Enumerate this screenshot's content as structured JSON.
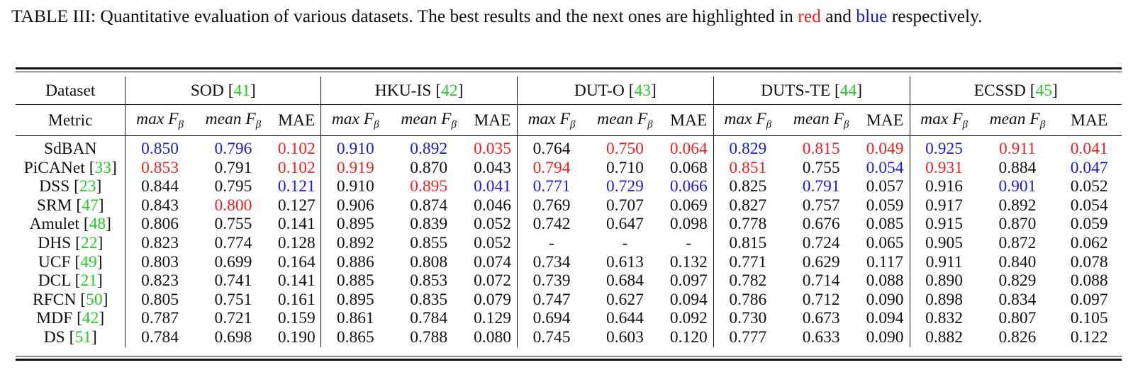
{
  "caption": {
    "pre": "TABLE III: Quantitative evaluation of various datasets. The best results and the next ones are highlighted in ",
    "best_color_word": "red",
    "and_word": " and ",
    "next_color_word": "blue",
    "post": " respectively."
  },
  "colors": {
    "best": "#f02020",
    "second": "#1a1ad8",
    "citation": "#22cc22"
  },
  "header": {
    "dataset_label": "Dataset",
    "metric_label": "Metric",
    "datasets": [
      {
        "name": "SOD ",
        "ref": "41"
      },
      {
        "name": "HKU-IS ",
        "ref": "42"
      },
      {
        "name": "DUT-O ",
        "ref": "43"
      },
      {
        "name": "DUTS-TE ",
        "ref": "44"
      },
      {
        "name": "ECSSD ",
        "ref": "45"
      }
    ],
    "metrics": {
      "max_prefix": "max F",
      "mean_prefix": "mean F",
      "subscript": "β",
      "mae": "MAE"
    }
  },
  "rows": [
    {
      "method": "SdBAN",
      "ref": "",
      "values": [
        {
          "v": "0.850",
          "h": "second"
        },
        {
          "v": "0.796",
          "h": "second"
        },
        {
          "v": "0.102",
          "h": "best"
        },
        {
          "v": "0.910",
          "h": "second"
        },
        {
          "v": "0.892",
          "h": "second"
        },
        {
          "v": "0.035",
          "h": "best"
        },
        {
          "v": "0.764",
          "h": ""
        },
        {
          "v": "0.750",
          "h": "best"
        },
        {
          "v": "0.064",
          "h": "best"
        },
        {
          "v": "0.829",
          "h": "second"
        },
        {
          "v": "0.815",
          "h": "best"
        },
        {
          "v": "0.049",
          "h": "best"
        },
        {
          "v": "0.925",
          "h": "second"
        },
        {
          "v": "0.911",
          "h": "best"
        },
        {
          "v": "0.041",
          "h": "best"
        }
      ]
    },
    {
      "method": "PiCANet ",
      "ref": "33",
      "values": [
        {
          "v": "0.853",
          "h": "best"
        },
        {
          "v": "0.791",
          "h": ""
        },
        {
          "v": "0.102",
          "h": "best"
        },
        {
          "v": "0.919",
          "h": "best"
        },
        {
          "v": "0.870",
          "h": ""
        },
        {
          "v": "0.043",
          "h": ""
        },
        {
          "v": "0.794",
          "h": "best"
        },
        {
          "v": "0.710",
          "h": ""
        },
        {
          "v": "0.068",
          "h": ""
        },
        {
          "v": "0.851",
          "h": "best"
        },
        {
          "v": "0.755",
          "h": ""
        },
        {
          "v": "0.054",
          "h": "second"
        },
        {
          "v": "0.931",
          "h": "best"
        },
        {
          "v": "0.884",
          "h": ""
        },
        {
          "v": "0.047",
          "h": "second"
        }
      ]
    },
    {
      "method": "DSS ",
      "ref": "23",
      "values": [
        {
          "v": "0.844",
          "h": ""
        },
        {
          "v": "0.795",
          "h": ""
        },
        {
          "v": "0.121",
          "h": "second"
        },
        {
          "v": "0.910",
          "h": ""
        },
        {
          "v": "0.895",
          "h": "best"
        },
        {
          "v": "0.041",
          "h": "second"
        },
        {
          "v": "0.771",
          "h": "second"
        },
        {
          "v": "0.729",
          "h": "second"
        },
        {
          "v": "0.066",
          "h": "second"
        },
        {
          "v": "0.825",
          "h": ""
        },
        {
          "v": "0.791",
          "h": "second"
        },
        {
          "v": "0.057",
          "h": ""
        },
        {
          "v": "0.916",
          "h": ""
        },
        {
          "v": "0.901",
          "h": "second"
        },
        {
          "v": "0.052",
          "h": ""
        }
      ]
    },
    {
      "method": "SRM ",
      "ref": "47",
      "values": [
        {
          "v": "0.843",
          "h": ""
        },
        {
          "v": "0.800",
          "h": "best"
        },
        {
          "v": "0.127",
          "h": ""
        },
        {
          "v": "0.906",
          "h": ""
        },
        {
          "v": "0.874",
          "h": ""
        },
        {
          "v": "0.046",
          "h": ""
        },
        {
          "v": "0.769",
          "h": ""
        },
        {
          "v": "0.707",
          "h": ""
        },
        {
          "v": "0.069",
          "h": ""
        },
        {
          "v": "0.827",
          "h": ""
        },
        {
          "v": "0.757",
          "h": ""
        },
        {
          "v": "0.059",
          "h": ""
        },
        {
          "v": "0.917",
          "h": ""
        },
        {
          "v": "0.892",
          "h": ""
        },
        {
          "v": "0.054",
          "h": ""
        }
      ]
    },
    {
      "method": "Amulet ",
      "ref": "48",
      "values": [
        {
          "v": "0.806",
          "h": ""
        },
        {
          "v": "0.755",
          "h": ""
        },
        {
          "v": "0.141",
          "h": ""
        },
        {
          "v": "0.895",
          "h": ""
        },
        {
          "v": "0.839",
          "h": ""
        },
        {
          "v": "0.052",
          "h": ""
        },
        {
          "v": "0.742",
          "h": ""
        },
        {
          "v": "0.647",
          "h": ""
        },
        {
          "v": "0.098",
          "h": ""
        },
        {
          "v": "0.778",
          "h": ""
        },
        {
          "v": "0.676",
          "h": ""
        },
        {
          "v": "0.085",
          "h": ""
        },
        {
          "v": "0.915",
          "h": ""
        },
        {
          "v": "0.870",
          "h": ""
        },
        {
          "v": "0.059",
          "h": ""
        }
      ]
    },
    {
      "method": "DHS ",
      "ref": "22",
      "values": [
        {
          "v": "0.823",
          "h": ""
        },
        {
          "v": "0.774",
          "h": ""
        },
        {
          "v": "0.128",
          "h": ""
        },
        {
          "v": "0.892",
          "h": ""
        },
        {
          "v": "0.855",
          "h": ""
        },
        {
          "v": "0.052",
          "h": ""
        },
        {
          "v": "-",
          "h": ""
        },
        {
          "v": "-",
          "h": ""
        },
        {
          "v": "-",
          "h": ""
        },
        {
          "v": "0.815",
          "h": ""
        },
        {
          "v": "0.724",
          "h": ""
        },
        {
          "v": "0.065",
          "h": ""
        },
        {
          "v": "0.905",
          "h": ""
        },
        {
          "v": "0.872",
          "h": ""
        },
        {
          "v": "0.062",
          "h": ""
        }
      ]
    },
    {
      "method": "UCF ",
      "ref": "49",
      "values": [
        {
          "v": "0.803",
          "h": ""
        },
        {
          "v": "0.699",
          "h": ""
        },
        {
          "v": "0.164",
          "h": ""
        },
        {
          "v": "0.886",
          "h": ""
        },
        {
          "v": "0.808",
          "h": ""
        },
        {
          "v": "0.074",
          "h": ""
        },
        {
          "v": "0.734",
          "h": ""
        },
        {
          "v": "0.613",
          "h": ""
        },
        {
          "v": "0.132",
          "h": ""
        },
        {
          "v": "0.771",
          "h": ""
        },
        {
          "v": "0.629",
          "h": ""
        },
        {
          "v": "0.117",
          "h": ""
        },
        {
          "v": "0.911",
          "h": ""
        },
        {
          "v": "0.840",
          "h": ""
        },
        {
          "v": "0.078",
          "h": ""
        }
      ]
    },
    {
      "method": "DCL ",
      "ref": "21",
      "values": [
        {
          "v": "0.823",
          "h": ""
        },
        {
          "v": "0.741",
          "h": ""
        },
        {
          "v": "0.141",
          "h": ""
        },
        {
          "v": "0.885",
          "h": ""
        },
        {
          "v": "0.853",
          "h": ""
        },
        {
          "v": "0.072",
          "h": ""
        },
        {
          "v": "0.739",
          "h": ""
        },
        {
          "v": "0.684",
          "h": ""
        },
        {
          "v": "0.097",
          "h": ""
        },
        {
          "v": "0.782",
          "h": ""
        },
        {
          "v": "0.714",
          "h": ""
        },
        {
          "v": "0.088",
          "h": ""
        },
        {
          "v": "0.890",
          "h": ""
        },
        {
          "v": "0.829",
          "h": ""
        },
        {
          "v": "0.088",
          "h": ""
        }
      ]
    },
    {
      "method": "RFCN ",
      "ref": "50",
      "values": [
        {
          "v": "0.805",
          "h": ""
        },
        {
          "v": "0.751",
          "h": ""
        },
        {
          "v": "0.161",
          "h": ""
        },
        {
          "v": "0.895",
          "h": ""
        },
        {
          "v": "0.835",
          "h": ""
        },
        {
          "v": "0.079",
          "h": ""
        },
        {
          "v": "0.747",
          "h": ""
        },
        {
          "v": "0.627",
          "h": ""
        },
        {
          "v": "0.094",
          "h": ""
        },
        {
          "v": "0.786",
          "h": ""
        },
        {
          "v": "0.712",
          "h": ""
        },
        {
          "v": "0.090",
          "h": ""
        },
        {
          "v": "0.898",
          "h": ""
        },
        {
          "v": "0.834",
          "h": ""
        },
        {
          "v": "0.097",
          "h": ""
        }
      ]
    },
    {
      "method": "MDF ",
      "ref": "42",
      "values": [
        {
          "v": "0.787",
          "h": ""
        },
        {
          "v": "0.721",
          "h": ""
        },
        {
          "v": "0.159",
          "h": ""
        },
        {
          "v": "0.861",
          "h": ""
        },
        {
          "v": "0.784",
          "h": ""
        },
        {
          "v": "0.129",
          "h": ""
        },
        {
          "v": "0.694",
          "h": ""
        },
        {
          "v": "0.644",
          "h": ""
        },
        {
          "v": "0.092",
          "h": ""
        },
        {
          "v": "0.730",
          "h": ""
        },
        {
          "v": "0.673",
          "h": ""
        },
        {
          "v": "0.094",
          "h": ""
        },
        {
          "v": "0.832",
          "h": ""
        },
        {
          "v": "0.807",
          "h": ""
        },
        {
          "v": "0.105",
          "h": ""
        }
      ]
    },
    {
      "method": "DS ",
      "ref": "51",
      "values": [
        {
          "v": "0.784",
          "h": ""
        },
        {
          "v": "0.698",
          "h": ""
        },
        {
          "v": "0.190",
          "h": ""
        },
        {
          "v": "0.865",
          "h": ""
        },
        {
          "v": "0.788",
          "h": ""
        },
        {
          "v": "0.080",
          "h": ""
        },
        {
          "v": "0.745",
          "h": ""
        },
        {
          "v": "0.603",
          "h": ""
        },
        {
          "v": "0.120",
          "h": ""
        },
        {
          "v": "0.777",
          "h": ""
        },
        {
          "v": "0.633",
          "h": ""
        },
        {
          "v": "0.090",
          "h": ""
        },
        {
          "v": "0.882",
          "h": ""
        },
        {
          "v": "0.826",
          "h": ""
        },
        {
          "v": "0.122",
          "h": ""
        }
      ]
    }
  ]
}
